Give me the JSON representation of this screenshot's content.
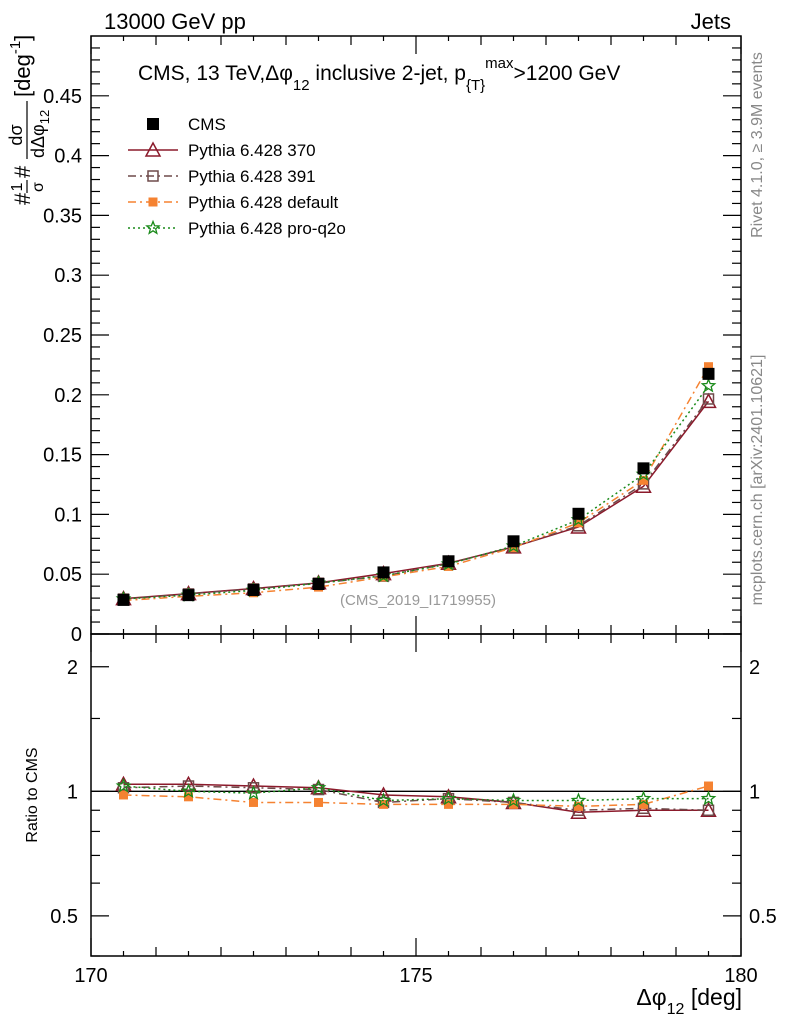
{
  "header": {
    "left": "13000 GeV pp",
    "right": "Jets"
  },
  "side_labels": {
    "rivet": "Rivet 4.1.0, ≥ 3.9M events",
    "mcplots": "mcplots.cern.ch [arXiv:2401.10621]"
  },
  "chart_data": {
    "type": "scatter",
    "title": "CMS, 13 TeV,Δφ",
    "title_sub": "12",
    "title_mid": " inclusive 2-jet,  p",
    "title_sub2": "{T}",
    "title_sup": "max",
    "title_end": ">1200 GeV",
    "analysis_tag": "(CMS_2019_I1719955)",
    "ylabel": "[deg",
    "ylabel_sup": "-1",
    "ylabel_close": "]",
    "ylabel_num": "dσ",
    "ylabel_den": "dΔφ",
    "ylabel_den_sub": "12",
    "ylabel_prefix": "#",
    "ylabel_prefix_num": "1",
    "ylabel_prefix_den": "σ",
    "xlabel": "Δφ",
    "xlabel_sub": "12",
    "xlabel_unit": " [deg]",
    "ratio_ylabel": "Ratio to CMS",
    "xlim": [
      170,
      180
    ],
    "ylim": [
      0,
      0.5
    ],
    "ratio_ylim": [
      0.4,
      2.4
    ],
    "x": [
      170.5,
      171.5,
      172.5,
      173.5,
      174.5,
      175.5,
      176.5,
      177.5,
      178.5,
      179.5
    ],
    "xticks": [
      "170",
      "175",
      "180"
    ],
    "yticks": [
      "0",
      "0.05",
      "0.1",
      "0.15",
      "0.2",
      "0.25",
      "0.3",
      "0.35",
      "0.4",
      "0.45"
    ],
    "ratio_yticks": [
      "0.5",
      "1",
      "2"
    ],
    "ratio_ytick_values": [
      0.5,
      1,
      2
    ],
    "series": [
      {
        "name": "CMS",
        "color": "#000000",
        "marker": "square-filled",
        "line": "none",
        "values": [
          0.0285,
          0.0325,
          0.0368,
          0.0418,
          0.0515,
          0.0608,
          0.0775,
          0.1005,
          0.1385,
          0.2175
        ],
        "ratio": [
          1,
          1,
          1,
          1,
          1,
          1,
          1,
          1,
          1,
          1
        ]
      },
      {
        "name": "Pythia 6.428 370",
        "color": "#8b1a2b",
        "marker": "triangle-open",
        "line": "solid",
        "values": [
          0.0296,
          0.0338,
          0.038,
          0.0428,
          0.0505,
          0.0592,
          0.0728,
          0.0895,
          0.1235,
          0.1945
        ],
        "ratio": [
          1.04,
          1.04,
          1.03,
          1.02,
          0.98,
          0.97,
          0.94,
          0.89,
          0.9,
          0.9
        ]
      },
      {
        "name": "Pythia 6.428 391",
        "color": "#6e4a4a",
        "marker": "square-open",
        "line": "dashdot",
        "values": [
          0.0292,
          0.0335,
          0.0377,
          0.0425,
          0.0484,
          0.0588,
          0.0728,
          0.0905,
          0.1255,
          0.1965
        ],
        "ratio": [
          1.02,
          1.03,
          1.02,
          1.01,
          0.94,
          0.96,
          0.94,
          0.9,
          0.91,
          0.9
        ]
      },
      {
        "name": "Pythia 6.428 default",
        "color": "#f58231",
        "marker": "square-filled-small",
        "line": "dashdot",
        "values": [
          0.028,
          0.0315,
          0.0345,
          0.0392,
          0.0477,
          0.0565,
          0.0722,
          0.093,
          0.1285,
          0.2235
        ],
        "ratio": [
          0.98,
          0.97,
          0.94,
          0.94,
          0.93,
          0.93,
          0.93,
          0.92,
          0.93,
          1.03
        ]
      },
      {
        "name": "Pythia 6.428 pro-q2o",
        "color": "#1a8a1a",
        "marker": "star-open",
        "line": "dotted",
        "values": [
          0.0293,
          0.0325,
          0.0365,
          0.0425,
          0.0487,
          0.0585,
          0.0735,
          0.0955,
          0.1335,
          0.2075
        ],
        "ratio": [
          1.03,
          1.0,
          0.99,
          1.02,
          0.95,
          0.96,
          0.95,
          0.95,
          0.96,
          0.96
        ]
      }
    ]
  }
}
